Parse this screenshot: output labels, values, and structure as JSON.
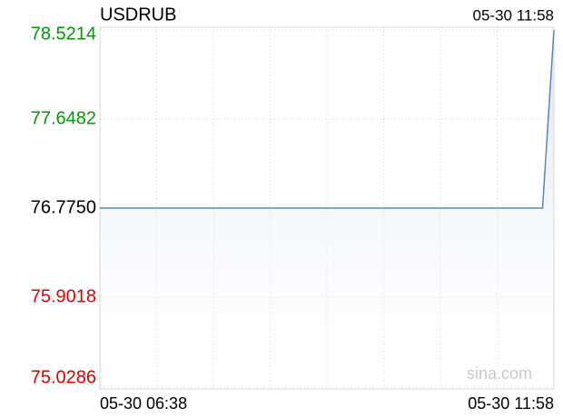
{
  "chart_data": {
    "type": "line",
    "title": "USDRUB",
    "timestamp": "05-30 11:58",
    "watermark": "sina.com",
    "categories": [
      "05-30 06:38",
      null,
      null,
      null,
      null,
      null,
      null,
      null,
      null,
      null,
      null,
      null,
      null,
      null,
      null,
      null,
      null,
      null,
      null,
      null,
      null,
      null,
      null,
      null,
      null,
      null,
      null,
      null,
      null,
      null,
      null,
      null,
      null,
      null,
      null,
      null,
      null,
      null,
      null,
      null,
      "05-30 11:58"
    ],
    "series": [
      {
        "name": "USDRUB",
        "color": "#5b86b6",
        "values": [
          76.775,
          76.775,
          76.775,
          76.775,
          76.775,
          76.775,
          76.775,
          76.775,
          76.775,
          76.775,
          76.775,
          76.775,
          76.775,
          76.775,
          76.775,
          76.775,
          76.775,
          76.775,
          76.775,
          76.775,
          76.775,
          76.775,
          76.775,
          76.775,
          76.775,
          76.775,
          76.775,
          76.775,
          76.775,
          76.775,
          76.775,
          76.775,
          76.775,
          76.775,
          76.775,
          76.775,
          76.775,
          76.775,
          76.775,
          76.775,
          78.5214
        ]
      }
    ],
    "ylim": [
      75.0286,
      78.5214
    ],
    "yticks": [
      {
        "value": 75.0286,
        "label": "75.0286"
      },
      {
        "value": 75.9018,
        "label": "75.9018"
      },
      {
        "value": 76.775,
        "label": "76.7750"
      },
      {
        "value": 77.6482,
        "label": "77.6482"
      },
      {
        "value": 78.5214,
        "label": "78.5214"
      }
    ],
    "ytick_colors": [
      "#dd0000",
      "#dd0000",
      "#000000",
      "#009900",
      "#009900"
    ],
    "grid": true
  }
}
